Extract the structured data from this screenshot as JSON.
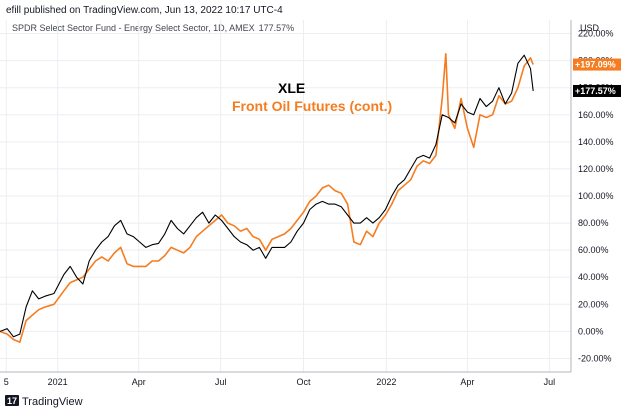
{
  "header": {
    "published": "efill published on TradingView.com, Jun 13, 2022 10:17 UTC-4",
    "symbol_line": "SPDR Select Sector Fund - Energy Select Sector, 1D, AMEX",
    "symbol_value": "177.57%"
  },
  "footer": {
    "brand": "TradingView",
    "logo_text": "17"
  },
  "colors": {
    "xle": "#000000",
    "oil": "#f57c1f",
    "xle_badge_bg": "#000000",
    "oil_badge_bg": "#f57c1f"
  },
  "chart_data": {
    "type": "line",
    "y_unit_label": "USD",
    "ylim": [
      -30,
      230
    ],
    "y_ticks": [
      "-20.00%",
      "0.00%",
      "20.00%",
      "40.00%",
      "60.00%",
      "80.00%",
      "100.00%",
      "120.00%",
      "140.00%",
      "160.00%",
      "180.00%",
      "200.00%",
      "220.00%"
    ],
    "y_tick_values": [
      -20,
      0,
      20,
      40,
      60,
      80,
      100,
      120,
      140,
      160,
      180,
      200,
      220
    ],
    "x_ticks": [
      "5",
      "2021",
      "Apr",
      "Jul",
      "Oct",
      "2022",
      "Apr",
      "Jul"
    ],
    "x_tick_values": [
      "2020-11-05",
      "2021-01-01",
      "2021-04-01",
      "2021-07-01",
      "2021-10-01",
      "2022-01-01",
      "2022-04-01",
      "2022-07-01"
    ],
    "x_range": [
      "2020-10-29",
      "2022-07-25"
    ],
    "grid": true,
    "legend_position": "top-left",
    "series": [
      {
        "name": "XLE",
        "last_label": "+177.57%",
        "points": [
          [
            "2020-10-29",
            0
          ],
          [
            "2020-11-06",
            2
          ],
          [
            "2020-11-13",
            -4
          ],
          [
            "2020-11-20",
            -2
          ],
          [
            "2020-11-27",
            18
          ],
          [
            "2020-12-04",
            30
          ],
          [
            "2020-12-11",
            24
          ],
          [
            "2020-12-18",
            26
          ],
          [
            "2020-12-28",
            28
          ],
          [
            "2021-01-08",
            42
          ],
          [
            "2021-01-15",
            48
          ],
          [
            "2021-01-22",
            40
          ],
          [
            "2021-01-29",
            35
          ],
          [
            "2021-02-05",
            52
          ],
          [
            "2021-02-12",
            60
          ],
          [
            "2021-02-19",
            66
          ],
          [
            "2021-02-26",
            70
          ],
          [
            "2021-03-05",
            78
          ],
          [
            "2021-03-12",
            82
          ],
          [
            "2021-03-19",
            72
          ],
          [
            "2021-03-26",
            70
          ],
          [
            "2021-04-02",
            66
          ],
          [
            "2021-04-09",
            62
          ],
          [
            "2021-04-16",
            64
          ],
          [
            "2021-04-23",
            65
          ],
          [
            "2021-04-30",
            72
          ],
          [
            "2021-05-07",
            82
          ],
          [
            "2021-05-14",
            76
          ],
          [
            "2021-05-21",
            72
          ],
          [
            "2021-05-28",
            78
          ],
          [
            "2021-06-04",
            84
          ],
          [
            "2021-06-11",
            88
          ],
          [
            "2021-06-18",
            80
          ],
          [
            "2021-06-25",
            86
          ],
          [
            "2021-07-02",
            82
          ],
          [
            "2021-07-09",
            76
          ],
          [
            "2021-07-16",
            70
          ],
          [
            "2021-07-23",
            66
          ],
          [
            "2021-07-30",
            64
          ],
          [
            "2021-08-06",
            60
          ],
          [
            "2021-08-13",
            62
          ],
          [
            "2021-08-20",
            54
          ],
          [
            "2021-08-27",
            62
          ],
          [
            "2021-09-03",
            62
          ],
          [
            "2021-09-10",
            62
          ],
          [
            "2021-09-17",
            66
          ],
          [
            "2021-09-24",
            74
          ],
          [
            "2021-10-01",
            80
          ],
          [
            "2021-10-08",
            90
          ],
          [
            "2021-10-15",
            94
          ],
          [
            "2021-10-22",
            96
          ],
          [
            "2021-10-29",
            94
          ],
          [
            "2021-11-05",
            94
          ],
          [
            "2021-11-12",
            92
          ],
          [
            "2021-11-19",
            86
          ],
          [
            "2021-11-26",
            80
          ],
          [
            "2021-12-03",
            80
          ],
          [
            "2021-12-10",
            84
          ],
          [
            "2021-12-17",
            80
          ],
          [
            "2021-12-24",
            84
          ],
          [
            "2021-12-31",
            90
          ],
          [
            "2022-01-07",
            100
          ],
          [
            "2022-01-14",
            108
          ],
          [
            "2022-01-21",
            112
          ],
          [
            "2022-01-28",
            120
          ],
          [
            "2022-02-04",
            128
          ],
          [
            "2022-02-11",
            130
          ],
          [
            "2022-02-18",
            128
          ],
          [
            "2022-02-25",
            138
          ],
          [
            "2022-03-04",
            160
          ],
          [
            "2022-03-11",
            158
          ],
          [
            "2022-03-18",
            154
          ],
          [
            "2022-03-25",
            168
          ],
          [
            "2022-04-01",
            162
          ],
          [
            "2022-04-08",
            160
          ],
          [
            "2022-04-15",
            172
          ],
          [
            "2022-04-22",
            166
          ],
          [
            "2022-04-29",
            170
          ],
          [
            "2022-05-06",
            180
          ],
          [
            "2022-05-13",
            168
          ],
          [
            "2022-05-20",
            176
          ],
          [
            "2022-05-27",
            198
          ],
          [
            "2022-06-03",
            204
          ],
          [
            "2022-06-10",
            194
          ],
          [
            "2022-06-13",
            177.57
          ]
        ]
      },
      {
        "name": "Front Oil Futures (cont.)",
        "last_label": "+197.09%",
        "points": [
          [
            "2020-10-29",
            0
          ],
          [
            "2020-11-06",
            -2
          ],
          [
            "2020-11-13",
            -6
          ],
          [
            "2020-11-20",
            -8
          ],
          [
            "2020-11-27",
            8
          ],
          [
            "2020-12-04",
            12
          ],
          [
            "2020-12-11",
            16
          ],
          [
            "2020-12-18",
            18
          ],
          [
            "2020-12-28",
            20
          ],
          [
            "2021-01-08",
            30
          ],
          [
            "2021-01-15",
            36
          ],
          [
            "2021-01-22",
            38
          ],
          [
            "2021-01-29",
            40
          ],
          [
            "2021-02-05",
            46
          ],
          [
            "2021-02-12",
            52
          ],
          [
            "2021-02-19",
            55
          ],
          [
            "2021-02-26",
            52
          ],
          [
            "2021-03-05",
            58
          ],
          [
            "2021-03-12",
            62
          ],
          [
            "2021-03-19",
            50
          ],
          [
            "2021-03-26",
            48
          ],
          [
            "2021-04-02",
            48
          ],
          [
            "2021-04-09",
            48
          ],
          [
            "2021-04-16",
            52
          ],
          [
            "2021-04-23",
            52
          ],
          [
            "2021-04-30",
            56
          ],
          [
            "2021-05-07",
            62
          ],
          [
            "2021-05-14",
            60
          ],
          [
            "2021-05-21",
            58
          ],
          [
            "2021-05-28",
            62
          ],
          [
            "2021-06-04",
            70
          ],
          [
            "2021-06-11",
            74
          ],
          [
            "2021-06-18",
            78
          ],
          [
            "2021-06-25",
            82
          ],
          [
            "2021-07-02",
            86
          ],
          [
            "2021-07-09",
            80
          ],
          [
            "2021-07-16",
            78
          ],
          [
            "2021-07-23",
            74
          ],
          [
            "2021-07-30",
            76
          ],
          [
            "2021-08-06",
            70
          ],
          [
            "2021-08-13",
            68
          ],
          [
            "2021-08-20",
            60
          ],
          [
            "2021-08-27",
            68
          ],
          [
            "2021-09-03",
            70
          ],
          [
            "2021-09-10",
            72
          ],
          [
            "2021-09-17",
            76
          ],
          [
            "2021-09-24",
            82
          ],
          [
            "2021-10-01",
            88
          ],
          [
            "2021-10-08",
            96
          ],
          [
            "2021-10-15",
            100
          ],
          [
            "2021-10-22",
            106
          ],
          [
            "2021-10-29",
            108
          ],
          [
            "2021-11-05",
            104
          ],
          [
            "2021-11-12",
            102
          ],
          [
            "2021-11-19",
            94
          ],
          [
            "2021-11-26",
            66
          ],
          [
            "2021-12-03",
            64
          ],
          [
            "2021-12-10",
            74
          ],
          [
            "2021-12-17",
            70
          ],
          [
            "2021-12-24",
            80
          ],
          [
            "2021-12-31",
            86
          ],
          [
            "2022-01-07",
            94
          ],
          [
            "2022-01-14",
            104
          ],
          [
            "2022-01-21",
            108
          ],
          [
            "2022-01-28",
            112
          ],
          [
            "2022-02-04",
            122
          ],
          [
            "2022-02-11",
            126
          ],
          [
            "2022-02-18",
            124
          ],
          [
            "2022-02-25",
            130
          ],
          [
            "2022-03-04",
            172
          ],
          [
            "2022-03-08",
            205
          ],
          [
            "2022-03-11",
            160
          ],
          [
            "2022-03-18",
            150
          ],
          [
            "2022-03-25",
            172
          ],
          [
            "2022-04-01",
            150
          ],
          [
            "2022-04-08",
            136
          ],
          [
            "2022-04-15",
            160
          ],
          [
            "2022-04-22",
            158
          ],
          [
            "2022-04-29",
            160
          ],
          [
            "2022-05-06",
            174
          ],
          [
            "2022-05-13",
            168
          ],
          [
            "2022-05-20",
            170
          ],
          [
            "2022-05-27",
            180
          ],
          [
            "2022-06-03",
            196
          ],
          [
            "2022-06-10",
            202
          ],
          [
            "2022-06-13",
            197.09
          ]
        ]
      }
    ],
    "annotations": [
      "XLE",
      "Front Oil Futures (cont.)"
    ]
  }
}
